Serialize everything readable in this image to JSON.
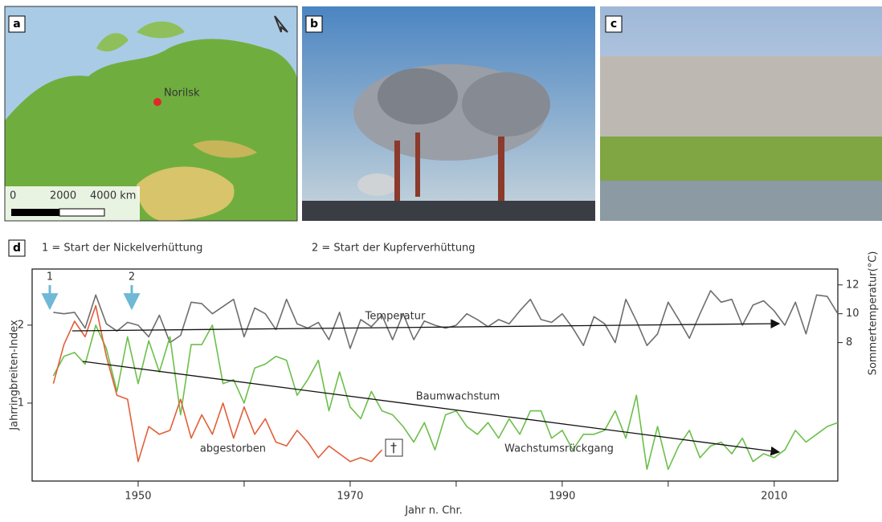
{
  "panels": {
    "a": {
      "label": "a",
      "city": "Norilsk",
      "scale": [
        "0",
        "2000",
        "4000 km"
      ]
    },
    "b": {
      "label": "b"
    },
    "c": {
      "label": "c"
    }
  },
  "chart_data": {
    "type": "line",
    "panel_label": "d",
    "notes": [
      "1 = Start der Nickelverhüttung",
      "2 = Start der Kupferverhüttung"
    ],
    "markers": [
      "1",
      "2"
    ],
    "xlabel": "Jahr n. Chr.",
    "ylabel": "Jahrringbreiten-Index",
    "y2label": "Sommertemperatur(°C)",
    "annotations": [
      "Temperatur",
      "Baumwachstum",
      "abgestorben",
      "Wachstumsrückgang",
      "†"
    ],
    "xlim": [
      1940,
      2016
    ],
    "xticks": [
      1950,
      1970,
      1990,
      2010
    ],
    "xminor": [
      1960,
      1980,
      2000
    ],
    "ylim": [
      0,
      2.72
    ],
    "yticks": [
      1,
      2
    ],
    "y2lim": [
      -1.6,
      13.1
    ],
    "y2ticks": [
      8,
      10,
      12
    ],
    "x": [
      1942,
      1943,
      1944,
      1945,
      1946,
      1947,
      1948,
      1949,
      1950,
      1951,
      1952,
      1953,
      1954,
      1955,
      1956,
      1957,
      1958,
      1959,
      1960,
      1961,
      1962,
      1963,
      1964,
      1965,
      1966,
      1967,
      1968,
      1969,
      1970,
      1971,
      1972,
      1973,
      1974,
      1975,
      1976,
      1977,
      1978,
      1979,
      1980,
      1981,
      1982,
      1983,
      1984,
      1985,
      1986,
      1987,
      1988,
      1989,
      1990,
      1991,
      1992,
      1993,
      1994,
      1995,
      1996,
      1997,
      1998,
      1999,
      2000,
      2001,
      2002,
      2003,
      2004,
      2005,
      2006,
      2007,
      2008,
      2009,
      2010,
      2011,
      2012,
      2013,
      2014,
      2015,
      2016
    ],
    "series": [
      {
        "color": "#6e6e6e",
        "axis": "y2",
        "values": [
          10.1,
          10.0,
          10.1,
          9.0,
          11.3,
          9.3,
          8.8,
          9.4,
          9.2,
          8.4,
          9.9,
          8.0,
          8.5,
          10.8,
          10.7,
          10.0,
          10.5,
          11.0,
          8.4,
          10.4,
          10.0,
          8.9,
          11.0,
          9.3,
          9.0,
          9.4,
          8.2,
          10.1,
          7.6,
          9.6,
          9.1,
          9.9,
          8.2,
          10.0,
          8.2,
          9.5,
          9.2,
          9.0,
          9.2,
          10.0,
          9.6,
          9.1,
          9.6,
          9.3,
          10.2,
          11.0,
          9.6,
          9.4,
          10.0,
          9.0,
          7.8,
          9.8,
          9.3,
          8.0,
          11.0,
          9.5,
          7.8,
          8.6,
          10.8,
          9.6,
          8.3,
          10.0,
          11.6,
          10.8,
          11.0,
          9.2,
          10.6,
          10.9,
          10.2,
          9.2,
          10.8,
          8.6,
          11.3,
          11.2,
          10.0
        ]
      },
      {
        "color": "#6cbf4a",
        "values": [
          1.35,
          1.6,
          1.65,
          1.5,
          2.0,
          1.7,
          1.15,
          1.85,
          1.25,
          1.8,
          1.4,
          1.85,
          0.85,
          1.75,
          1.75,
          2.0,
          1.25,
          1.3,
          1.0,
          1.45,
          1.5,
          1.6,
          1.55,
          1.1,
          1.3,
          1.55,
          0.9,
          1.4,
          0.95,
          0.8,
          1.15,
          0.9,
          0.85,
          0.7,
          0.5,
          0.75,
          0.4,
          0.85,
          0.9,
          0.7,
          0.6,
          0.75,
          0.55,
          0.8,
          0.6,
          0.9,
          0.9,
          0.55,
          0.65,
          0.4,
          0.6,
          0.6,
          0.65,
          0.9,
          0.55,
          1.1,
          0.15,
          0.7,
          0.15,
          0.45,
          0.65,
          0.3,
          0.45,
          0.5,
          0.35,
          0.55,
          0.25,
          0.35,
          0.3,
          0.4,
          0.65,
          0.5,
          0.6,
          0.7,
          0.75
        ]
      },
      {
        "color": "#e0603a",
        "values": [
          1.25,
          1.75,
          2.05,
          1.85,
          2.25,
          1.6,
          1.1,
          1.05,
          0.25,
          0.7,
          0.6,
          0.65,
          1.05,
          0.55,
          0.85,
          0.6,
          1.0,
          0.55,
          0.95,
          0.6,
          0.8,
          0.5,
          0.45,
          0.65,
          0.5,
          0.3,
          0.45,
          0.35,
          0.25,
          0.3,
          0.25,
          0.4,
          null,
          null,
          null,
          null,
          null,
          null,
          null,
          null,
          null,
          null,
          null,
          null,
          null,
          null,
          null,
          null,
          null,
          null,
          null,
          null,
          null,
          null,
          null,
          null,
          null,
          null,
          null,
          null,
          null,
          null,
          null,
          null,
          null,
          null,
          null,
          null,
          null,
          null,
          null,
          null,
          null,
          null,
          null
        ]
      }
    ]
  }
}
